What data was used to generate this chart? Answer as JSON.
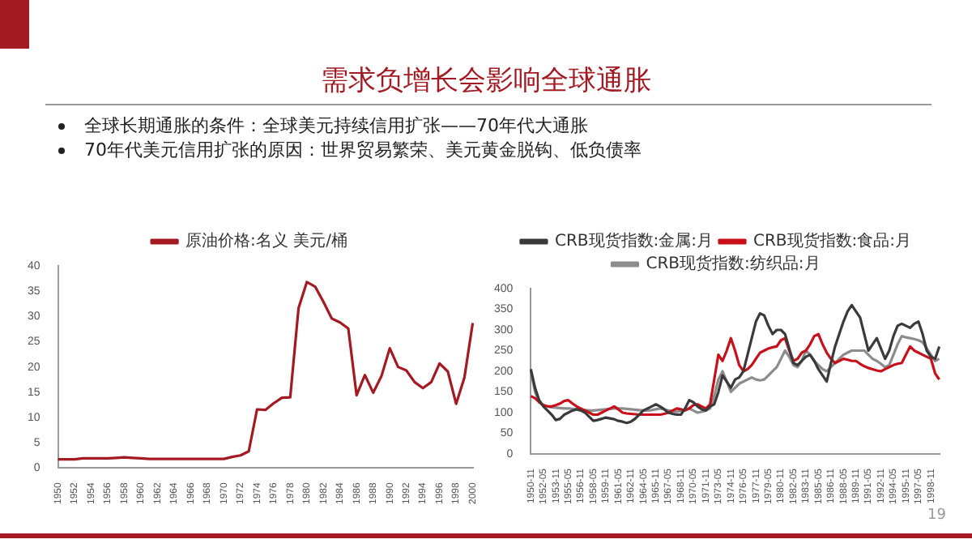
{
  "chart_data": [
    {
      "type": "other",
      "title": "需求负增长会影响全球通胀",
      "annotations": [
        "全球长期通胀的条件：全球美元持续信用扩张——70年代大通胀",
        "70年代美元信用扩张的原因：世界贸易繁荣、美元黄金脱钩、低负债率",
        "19"
      ]
    },
    {
      "type": "line",
      "legend": "top",
      "grid": false,
      "marker": "none",
      "categories": [
        "1950",
        null,
        "1952",
        null,
        "1954",
        null,
        "1956",
        null,
        "1958",
        null,
        "1960",
        null,
        "1962",
        null,
        "1964",
        null,
        "1966",
        null,
        "1968",
        null,
        "1970",
        null,
        "1972",
        null,
        "1974",
        null,
        "1976",
        null,
        "1978",
        null,
        "1980",
        null,
        "1982",
        null,
        "1984",
        null,
        "1986",
        null,
        "1988",
        null,
        "1990",
        null,
        "1992",
        null,
        "1994",
        null,
        "1996",
        null,
        "1998",
        null,
        "2000"
      ],
      "ylim": [
        0,
        40
      ],
      "yticks": [
        0,
        5,
        10,
        15,
        20,
        25,
        30,
        35,
        40
      ],
      "series": [
        {
          "name": "原油价格:名义 美元/桶",
          "color": "#a31a22",
          "values": [
            1.7,
            1.7,
            1.7,
            1.9,
            1.9,
            1.9,
            1.9,
            2.0,
            2.1,
            2.0,
            1.9,
            1.8,
            1.8,
            1.8,
            1.8,
            1.8,
            1.8,
            1.8,
            1.8,
            1.8,
            1.8,
            2.2,
            2.5,
            3.3,
            11.6,
            11.5,
            12.8,
            13.9,
            14.0,
            31.6,
            36.8,
            35.9,
            32.9,
            29.6,
            28.8,
            27.6,
            14.4,
            18.4,
            14.9,
            18.2,
            23.7,
            20.0,
            19.3,
            17.0,
            15.8,
            17.0,
            20.7,
            19.1,
            12.7,
            17.9,
            28.7
          ]
        }
      ]
    },
    {
      "type": "line",
      "legend": "top",
      "grid": false,
      "marker": "none",
      "categories": [
        "1950-11",
        null,
        null,
        "1952-05",
        null,
        null,
        "1953-11",
        null,
        null,
        "1955-05",
        null,
        null,
        "1956-11",
        null,
        null,
        "1958-05",
        null,
        null,
        "1959-11",
        null,
        null,
        "1961-05",
        null,
        null,
        "1962-11",
        null,
        null,
        "1964-05",
        null,
        null,
        "1965-11",
        null,
        null,
        "1967-05",
        null,
        null,
        "1968-11",
        null,
        null,
        "1970-05",
        null,
        null,
        "1971-11",
        null,
        null,
        "1973-05",
        null,
        null,
        "1974-11",
        null,
        null,
        "1976-05",
        null,
        null,
        "1977-11",
        null,
        null,
        "1979-05",
        null,
        null,
        "1980-11",
        null,
        null,
        "1982-05",
        null,
        null,
        "1983-11",
        null,
        null,
        "1985-05",
        null,
        null,
        "1986-11",
        null,
        null,
        "1988-05",
        null,
        null,
        "1989-11",
        null,
        null,
        "1991-05",
        null,
        null,
        "1992-11",
        null,
        null,
        "1994-05",
        null,
        null,
        "1995-11",
        null,
        null,
        "1997-05",
        null,
        null,
        "1998-11",
        null,
        null
      ],
      "ylim": [
        0,
        400
      ],
      "yticks": [
        0,
        50,
        100,
        150,
        200,
        250,
        300,
        350,
        400
      ],
      "series": [
        {
          "name": "CRB现货指数:金属:月",
          "color": "#3a3a3a",
          "values": [
            205,
            160,
            130,
            115,
            105,
            95,
            82,
            85,
            95,
            100,
            105,
            108,
            105,
            100,
            90,
            80,
            82,
            85,
            88,
            86,
            84,
            80,
            78,
            75,
            78,
            85,
            95,
            105,
            110,
            115,
            120,
            115,
            108,
            100,
            97,
            95,
            95,
            110,
            130,
            125,
            115,
            108,
            105,
            115,
            120,
            150,
            190,
            175,
            160,
            180,
            185,
            200,
            240,
            280,
            320,
            340,
            335,
            310,
            290,
            300,
            300,
            290,
            255,
            220,
            215,
            225,
            235,
            240,
            225,
            205,
            190,
            175,
            220,
            260,
            290,
            320,
            345,
            360,
            345,
            330,
            290,
            250,
            265,
            280,
            255,
            230,
            250,
            285,
            310,
            315,
            310,
            305,
            315,
            320,
            290,
            250,
            235,
            230,
            260
          ]
        },
        {
          "name": "CRB现货指数:食品:月",
          "color": "#c8101a",
          "values": [
            140,
            135,
            125,
            118,
            115,
            115,
            118,
            122,
            128,
            130,
            122,
            115,
            110,
            105,
            100,
            95,
            95,
            100,
            105,
            110,
            115,
            108,
            100,
            98,
            97,
            96,
            95,
            95,
            95,
            95,
            95,
            95,
            97,
            100,
            105,
            110,
            108,
            105,
            110,
            118,
            120,
            115,
            110,
            120,
            180,
            240,
            225,
            250,
            280,
            250,
            215,
            200,
            205,
            215,
            230,
            245,
            250,
            255,
            258,
            260,
            275,
            280,
            250,
            225,
            230,
            245,
            250,
            265,
            285,
            290,
            265,
            245,
            230,
            220,
            225,
            230,
            228,
            225,
            225,
            218,
            212,
            208,
            205,
            202,
            200,
            205,
            210,
            215,
            218,
            220,
            240,
            260,
            250,
            245,
            240,
            235,
            230,
            195,
            180
          ]
        },
        {
          "name": "CRB现货指数:纺织品:月",
          "color": "#8c8c8c",
          "values": [
            200,
            150,
            125,
            118,
            115,
            113,
            112,
            111,
            110,
            110,
            109,
            108,
            107,
            106,
            105,
            105,
            106,
            107,
            108,
            109,
            110,
            110,
            110,
            109,
            108,
            107,
            106,
            105,
            105,
            106,
            108,
            110,
            108,
            105,
            103,
            102,
            104,
            108,
            110,
            105,
            100,
            102,
            105,
            110,
            140,
            180,
            200,
            175,
            150,
            160,
            170,
            175,
            180,
            185,
            180,
            178,
            180,
            190,
            200,
            210,
            230,
            250,
            235,
            215,
            210,
            225,
            250,
            240,
            225,
            215,
            205,
            200,
            210,
            220,
            230,
            240,
            245,
            250,
            250,
            250,
            250,
            240,
            230,
            225,
            218,
            210,
            215,
            240,
            265,
            285,
            282,
            280,
            278,
            275,
            270,
            255,
            240,
            225,
            230
          ]
        }
      ]
    }
  ]
}
